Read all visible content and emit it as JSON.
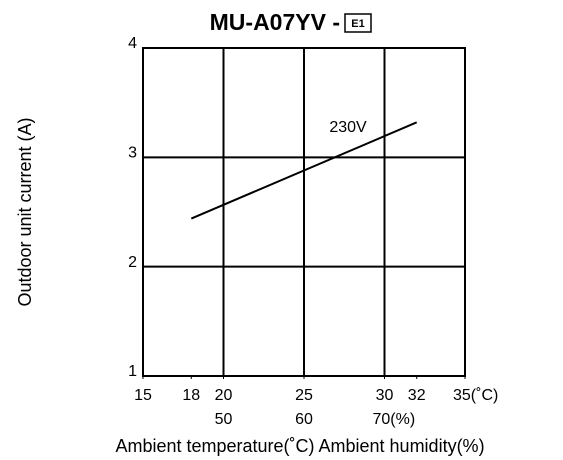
{
  "chart_data": {
    "type": "line",
    "title": "MU-A07YV -",
    "title_badge": "E1",
    "ylabel": "Outdoor unit current (A)",
    "xlabel": "Ambient temperature(˚C)  Ambient humidity(%)",
    "xlim": [
      15,
      35
    ],
    "xticks": [
      15,
      18,
      20,
      25,
      30,
      32,
      {
        "value": 35,
        "label": "35(˚C)"
      }
    ],
    "xgrid": [
      20,
      25,
      30
    ],
    "x2lim": [
      40,
      80
    ],
    "x2ticks": [
      50,
      60,
      {
        "value": 70,
        "label": "70(%)"
      }
    ],
    "ylim": [
      1,
      4
    ],
    "yticks": [
      1,
      2,
      3,
      4
    ],
    "grid": true,
    "x": [
      18,
      32
    ],
    "series": [
      {
        "name": "230V",
        "color": "#000000",
        "values": [
          2.44,
          3.32
        ]
      }
    ]
  }
}
